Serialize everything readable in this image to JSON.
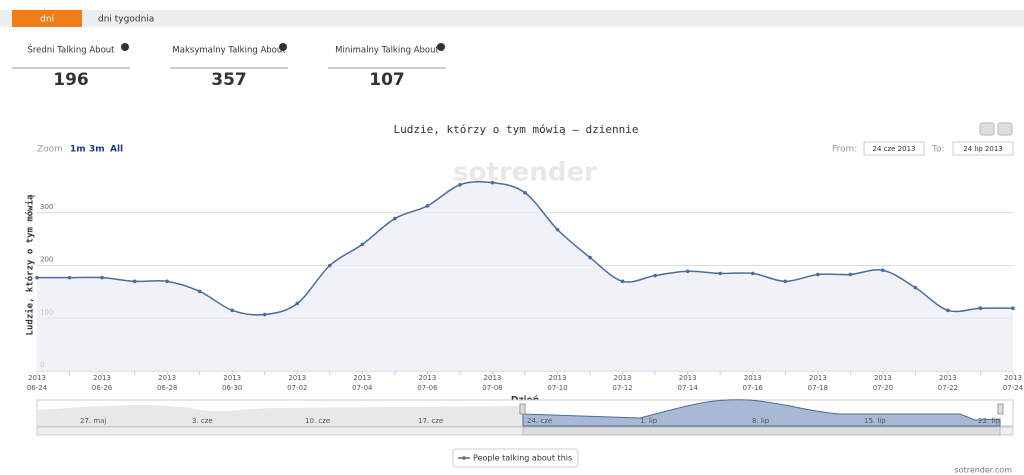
{
  "tabs": [
    "dni",
    "dni tygodnia"
  ],
  "stats": [
    {
      "label": "Średni Talking About",
      "value": "196"
    },
    {
      "label": "Maksymalny Talking About",
      "value": "357"
    },
    {
      "label": "Minimalny Talking About",
      "value": "107"
    }
  ],
  "chart_data": {
    "type": "area",
    "title": "Ludzie, którzy o tym mówią – dziennie",
    "zoom": {
      "label": "Zoom",
      "options": [
        "1m",
        "3m",
        "All"
      ]
    },
    "range": {
      "from_label": "From:",
      "from": "24 cze 2013",
      "to_label": "To:",
      "to": "24 lip 2013"
    },
    "watermark": "sotrender",
    "y_label": "Ludzie, którzy o tym mówią",
    "x_label": "Dzień",
    "categories": [
      "2013 06-24",
      null,
      "2013 06-26",
      null,
      "2013 06-28",
      null,
      "2013 06-30",
      null,
      "2013 07-02",
      null,
      "2013 07-04",
      null,
      "2013 07-06",
      null,
      "2013 07-08",
      null,
      "2013 07-10",
      null,
      "2013 07-12",
      null,
      "2013 07-14",
      null,
      "2013 07-16",
      null,
      "2013 07-18",
      null,
      "2013 07-20",
      null,
      "2013 07-22",
      null,
      "2013 07-24"
    ],
    "series": [
      {
        "name": "People talking about this",
        "color": "#4a6d9a",
        "values": [
          177,
          177,
          177,
          170,
          170,
          151,
          115,
          107,
          128,
          200,
          240,
          289,
          313,
          353,
          357,
          338,
          268,
          215,
          170,
          181,
          189,
          185,
          185,
          170,
          183,
          183,
          191,
          158,
          115,
          119,
          119
        ]
      }
    ],
    "ylim": [
      0,
      400
    ],
    "yticks": [
      0,
      100,
      200,
      300
    ],
    "grid": true,
    "navigator_labels": [
      "27. maj",
      "3. cze",
      "10. cze",
      "17. cze",
      "24. cze",
      "1. lip",
      "8. lip",
      "15. lip",
      "22. lip"
    ],
    "legend": "bottom"
  },
  "footer": "sotrender.com"
}
